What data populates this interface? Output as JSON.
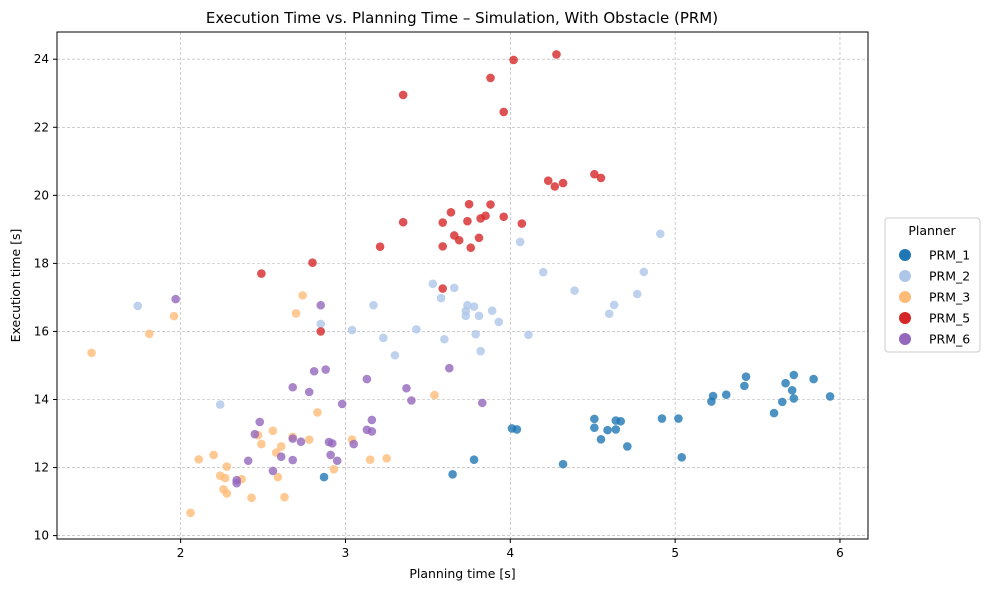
{
  "chart_data": {
    "type": "scatter",
    "title": "Execution Time vs. Planning Time – Simulation, With Obstacle (PRM)",
    "xlabel": "Planning time [s]",
    "ylabel": "Execution time [s]",
    "xlim": [
      1.25,
      6.17
    ],
    "ylim": [
      9.9,
      24.8
    ],
    "xticks": [
      2,
      3,
      4,
      5,
      6
    ],
    "yticks": [
      10,
      12,
      14,
      16,
      18,
      20,
      22,
      24
    ],
    "grid": true,
    "legend": {
      "title": "Planner",
      "placement": "outside-right"
    },
    "series": [
      {
        "name": "PRM_1",
        "color": "#1f77b4",
        "points": [
          [
            2.87,
            11.72
          ],
          [
            3.65,
            11.8
          ],
          [
            3.78,
            12.23
          ],
          [
            4.01,
            13.15
          ],
          [
            4.04,
            13.12
          ],
          [
            4.32,
            12.1
          ],
          [
            4.51,
            13.43
          ],
          [
            4.51,
            13.17
          ],
          [
            4.55,
            12.83
          ],
          [
            4.59,
            13.1
          ],
          [
            4.64,
            13.38
          ],
          [
            4.64,
            13.12
          ],
          [
            4.67,
            13.36
          ],
          [
            4.71,
            12.62
          ],
          [
            4.92,
            13.44
          ],
          [
            5.02,
            13.44
          ],
          [
            5.04,
            12.3
          ],
          [
            5.22,
            13.94
          ],
          [
            5.23,
            14.1
          ],
          [
            5.31,
            14.14
          ],
          [
            5.42,
            14.4
          ],
          [
            5.43,
            14.67
          ],
          [
            5.6,
            13.6
          ],
          [
            5.65,
            13.93
          ],
          [
            5.67,
            14.48
          ],
          [
            5.71,
            14.27
          ],
          [
            5.72,
            14.72
          ],
          [
            5.72,
            14.03
          ],
          [
            5.84,
            14.6
          ],
          [
            5.94,
            14.09
          ]
        ]
      },
      {
        "name": "PRM_2",
        "color": "#aec7e8",
        "points": [
          [
            1.74,
            16.75
          ],
          [
            2.24,
            13.85
          ],
          [
            2.85,
            16.22
          ],
          [
            3.04,
            16.04
          ],
          [
            3.17,
            16.77
          ],
          [
            3.23,
            15.81
          ],
          [
            3.3,
            15.3
          ],
          [
            3.43,
            16.06
          ],
          [
            3.53,
            17.4
          ],
          [
            3.58,
            16.98
          ],
          [
            3.6,
            15.77
          ],
          [
            3.66,
            17.28
          ],
          [
            3.73,
            16.46
          ],
          [
            3.73,
            16.6
          ],
          [
            3.74,
            16.77
          ],
          [
            3.78,
            16.73
          ],
          [
            3.79,
            15.92
          ],
          [
            3.81,
            16.46
          ],
          [
            3.82,
            15.42
          ],
          [
            3.89,
            16.61
          ],
          [
            3.93,
            16.28
          ],
          [
            4.06,
            18.63
          ],
          [
            4.11,
            15.9
          ],
          [
            4.2,
            17.74
          ],
          [
            4.39,
            17.2
          ],
          [
            4.6,
            16.52
          ],
          [
            4.63,
            16.78
          ],
          [
            4.77,
            17.1
          ],
          [
            4.81,
            17.75
          ],
          [
            4.91,
            18.87
          ]
        ]
      },
      {
        "name": "PRM_3",
        "color": "#ffbb78",
        "points": [
          [
            1.46,
            15.37
          ],
          [
            1.81,
            15.93
          ],
          [
            1.96,
            16.45
          ],
          [
            2.06,
            10.67
          ],
          [
            2.11,
            12.24
          ],
          [
            2.2,
            12.37
          ],
          [
            2.24,
            11.76
          ],
          [
            2.26,
            11.36
          ],
          [
            2.27,
            11.69
          ],
          [
            2.28,
            11.24
          ],
          [
            2.37,
            11.66
          ],
          [
            2.43,
            11.11
          ],
          [
            2.47,
            12.95
          ],
          [
            2.49,
            12.69
          ],
          [
            2.56,
            13.08
          ],
          [
            2.58,
            12.44
          ],
          [
            2.59,
            11.72
          ],
          [
            2.61,
            12.62
          ],
          [
            2.63,
            11.13
          ],
          [
            2.68,
            12.9
          ],
          [
            2.7,
            16.53
          ],
          [
            2.74,
            17.06
          ],
          [
            2.78,
            12.82
          ],
          [
            2.83,
            13.62
          ],
          [
            2.93,
            11.95
          ],
          [
            3.04,
            12.82
          ],
          [
            3.15,
            12.23
          ],
          [
            3.25,
            12.27
          ],
          [
            3.54,
            14.13
          ],
          [
            2.28,
            12.03
          ]
        ]
      },
      {
        "name": "PRM_5",
        "color": "#d62728",
        "points": [
          [
            2.49,
            17.7
          ],
          [
            2.8,
            18.02
          ],
          [
            2.85,
            16.0
          ],
          [
            3.21,
            18.49
          ],
          [
            3.35,
            22.95
          ],
          [
            3.35,
            19.21
          ],
          [
            3.59,
            19.2
          ],
          [
            3.59,
            18.5
          ],
          [
            3.59,
            17.26
          ],
          [
            3.64,
            19.5
          ],
          [
            3.66,
            18.82
          ],
          [
            3.69,
            18.68
          ],
          [
            3.74,
            19.24
          ],
          [
            3.75,
            19.74
          ],
          [
            3.76,
            18.46
          ],
          [
            3.81,
            18.75
          ],
          [
            3.82,
            19.32
          ],
          [
            3.85,
            19.4
          ],
          [
            3.88,
            23.45
          ],
          [
            3.88,
            19.73
          ],
          [
            3.96,
            22.45
          ],
          [
            3.96,
            19.37
          ],
          [
            4.02,
            23.98
          ],
          [
            4.07,
            19.17
          ],
          [
            4.23,
            20.43
          ],
          [
            4.27,
            20.26
          ],
          [
            4.28,
            24.14
          ],
          [
            4.32,
            20.36
          ],
          [
            4.51,
            20.62
          ],
          [
            4.55,
            20.51
          ]
        ]
      },
      {
        "name": "PRM_6",
        "color": "#9467bd",
        "points": [
          [
            1.97,
            16.95
          ],
          [
            2.34,
            11.63
          ],
          [
            2.34,
            11.54
          ],
          [
            2.41,
            12.2
          ],
          [
            2.45,
            12.98
          ],
          [
            2.48,
            13.34
          ],
          [
            2.56,
            11.9
          ],
          [
            2.61,
            12.32
          ],
          [
            2.68,
            14.36
          ],
          [
            2.68,
            12.22
          ],
          [
            2.68,
            12.85
          ],
          [
            2.73,
            12.76
          ],
          [
            2.78,
            14.22
          ],
          [
            2.81,
            14.83
          ],
          [
            2.85,
            16.77
          ],
          [
            2.88,
            14.88
          ],
          [
            2.9,
            12.75
          ],
          [
            2.91,
            12.37
          ],
          [
            2.92,
            12.71
          ],
          [
            2.95,
            12.2
          ],
          [
            2.98,
            13.87
          ],
          [
            3.05,
            12.69
          ],
          [
            3.13,
            14.6
          ],
          [
            3.13,
            13.11
          ],
          [
            3.16,
            13.4
          ],
          [
            3.16,
            13.06
          ],
          [
            3.37,
            14.33
          ],
          [
            3.4,
            13.97
          ],
          [
            3.63,
            14.92
          ],
          [
            3.83,
            13.9
          ]
        ]
      }
    ]
  }
}
